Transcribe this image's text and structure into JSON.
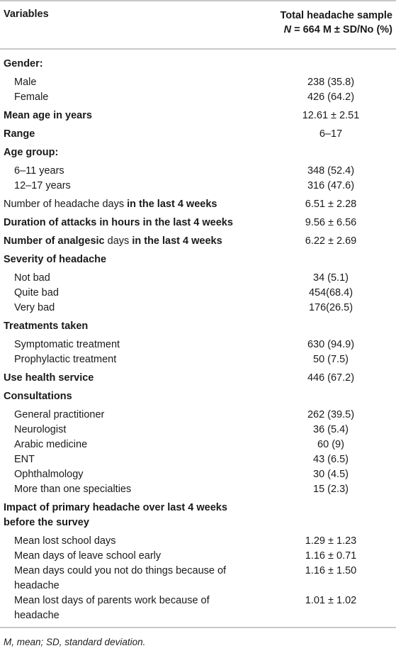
{
  "header": {
    "col1": "Variables",
    "col2_line1": "Total headache sample",
    "col2_line2_n": "N",
    "col2_line2_rest": " = 664 M ± SD/No (%)"
  },
  "rows": [
    {
      "label": "Gender:",
      "value": "",
      "style": "bold",
      "h": 26
    },
    {
      "label": "Male",
      "value": "238 (35.8)",
      "style": "sub",
      "h": 21
    },
    {
      "label": "Female",
      "value": "426 (64.2)",
      "style": "sub",
      "h": 26
    },
    {
      "label": "Mean age in years",
      "value": "12.61 ± 2.51",
      "style": "bold",
      "h": 26
    },
    {
      "label": "Range",
      "value": "6–17",
      "style": "bold",
      "h": 26
    },
    {
      "label": "Age group:",
      "value": "",
      "style": "bold",
      "h": 26
    },
    {
      "label": "6–11 years",
      "value": "348 (52.4)",
      "style": "sub",
      "h": 21
    },
    {
      "label": "12–17 years",
      "value": "316 (47.6)",
      "style": "sub",
      "h": 26
    },
    {
      "label": "Number of headache days ",
      "label_bold": "in the last 4 weeks",
      "value": "6.51 ± 2.28",
      "style": "mixed",
      "h": 26
    },
    {
      "label": "Duration of attacks in hours in the last 4 weeks",
      "value": "9.56 ± 6.56",
      "style": "bold",
      "h": 26
    },
    {
      "label": "Number of analgesic",
      "label_plain": " days",
      "label_bold2": " in the last 4 weeks",
      "value": "6.22 ± 2.69",
      "style": "mixed2",
      "h": 26
    },
    {
      "label": "Severity of headache",
      "value": "",
      "style": "bold",
      "h": 26
    },
    {
      "label": "Not bad",
      "value": "34 (5.1)",
      "style": "sub",
      "h": 21
    },
    {
      "label": "Quite bad",
      "value": "454(68.4)",
      "style": "sub",
      "h": 21
    },
    {
      "label": "Very bad",
      "value": "176(26.5)",
      "style": "sub",
      "h": 26
    },
    {
      "label": "Treatments taken",
      "value": "",
      "style": "bold",
      "h": 26
    },
    {
      "label": "Symptomatic treatment",
      "value": "630 (94.9)",
      "style": "sub",
      "h": 21
    },
    {
      "label": "Prophylactic treatment",
      "value": "50 (7.5)",
      "style": "sub",
      "h": 26
    },
    {
      "label": "Use health service",
      "value": "446 (67.2)",
      "style": "bold",
      "h": 26
    },
    {
      "label": "Consultations",
      "value": "",
      "style": "bold",
      "h": 26
    },
    {
      "label": "General practitioner",
      "value": "262 (39.5)",
      "style": "sub",
      "h": 21
    },
    {
      "label": "Neurologist",
      "value": "36 (5.4)",
      "style": "sub",
      "h": 21
    },
    {
      "label": "Arabic medicine",
      "value": "60 (9)",
      "style": "sub",
      "h": 21
    },
    {
      "label": "ENT",
      "value": "43 (6.5)",
      "style": "sub",
      "h": 21
    },
    {
      "label": "Ophthalmology",
      "value": "30 (4.5)",
      "style": "sub",
      "h": 21
    },
    {
      "label": "More than one specialties",
      "value": "15 (2.3)",
      "style": "sub",
      "h": 26
    },
    {
      "label": "Impact of primary headache over last 4 weeks before the survey",
      "value": "",
      "style": "bold",
      "h": 47
    },
    {
      "label": "Mean lost school days",
      "value": "1.29 ± 1.23",
      "style": "sub",
      "h": 21
    },
    {
      "label": "Mean days of leave school early",
      "value": "1.16 ± 0.71",
      "style": "sub",
      "h": 21
    },
    {
      "label": "Mean days could you not do things because of headache",
      "value": "1.16 ± 1.50",
      "style": "sub",
      "h": 42
    },
    {
      "label": "Mean lost days of parents work because of headache",
      "value": "1.01 ± 1.02",
      "style": "sub",
      "h": 47
    }
  ],
  "footnote": "M, mean; SD, standard deviation."
}
